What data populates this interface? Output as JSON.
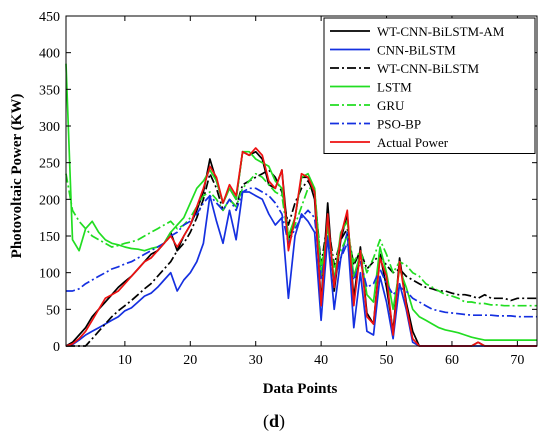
{
  "panel_label_open": "(",
  "panel_label_letter": "d",
  "panel_label_close": ")",
  "chart_data": {
    "type": "line",
    "title": "",
    "xlabel": "Data Points",
    "ylabel": "Photovoltaic Power (KW)",
    "xlim": [
      1,
      73
    ],
    "ylim": [
      0,
      450
    ],
    "xticks": [
      10,
      20,
      30,
      40,
      50,
      60,
      70
    ],
    "yticks": [
      0,
      50,
      100,
      150,
      200,
      250,
      300,
      350,
      400,
      450
    ],
    "grid": false,
    "legend_position": "top-right",
    "series": [
      {
        "name": "WT-CNN-BiLSTM-AM",
        "color": "#000000",
        "dash": "solid",
        "values": [
          0,
          5,
          15,
          25,
          40,
          50,
          60,
          70,
          80,
          88,
          95,
          105,
          115,
          125,
          130,
          140,
          155,
          130,
          150,
          165,
          185,
          210,
          255,
          225,
          195,
          215,
          200,
          265,
          260,
          265,
          255,
          220,
          215,
          240,
          145,
          175,
          230,
          230,
          200,
          60,
          195,
          75,
          145,
          180,
          65,
          135,
          45,
          30,
          125,
          80,
          20,
          120,
          60,
          20,
          0,
          0,
          0,
          0,
          0,
          0,
          0,
          0,
          0,
          5,
          0,
          0,
          0,
          0,
          0,
          0,
          0,
          0,
          0
        ]
      },
      {
        "name": "CNN-BiLSTM",
        "color": "#1530e0",
        "dash": "solid",
        "values": [
          0,
          2,
          8,
          15,
          20,
          25,
          30,
          35,
          40,
          48,
          52,
          60,
          68,
          72,
          80,
          90,
          100,
          75,
          90,
          100,
          115,
          140,
          205,
          170,
          140,
          185,
          145,
          210,
          210,
          205,
          200,
          180,
          165,
          175,
          65,
          150,
          180,
          170,
          155,
          35,
          150,
          50,
          120,
          155,
          25,
          100,
          20,
          15,
          95,
          60,
          10,
          85,
          50,
          5,
          0,
          0,
          0,
          0,
          0,
          0,
          0,
          0,
          0,
          0,
          0,
          0,
          0,
          0,
          0,
          0,
          0,
          0,
          0
        ]
      },
      {
        "name": "WT-CNN-BiLSTM",
        "color": "#000000",
        "dash": "dashdot",
        "values": [
          0,
          0,
          0,
          0,
          10,
          20,
          30,
          40,
          48,
          55,
          62,
          70,
          78,
          85,
          95,
          105,
          115,
          130,
          140,
          155,
          175,
          200,
          235,
          215,
          185,
          200,
          190,
          220,
          225,
          230,
          235,
          240,
          230,
          210,
          165,
          195,
          215,
          225,
          210,
          110,
          170,
          110,
          145,
          160,
          110,
          130,
          105,
          115,
          125,
          110,
          100,
          105,
          95,
          90,
          85,
          80,
          78,
          75,
          75,
          72,
          70,
          70,
          68,
          65,
          70,
          65,
          65,
          65,
          62,
          65,
          65,
          65,
          65
        ]
      },
      {
        "name": "LSTM",
        "color": "#22dd22",
        "dash": "solid",
        "values": [
          385,
          145,
          130,
          160,
          170,
          155,
          145,
          140,
          138,
          135,
          133,
          132,
          130,
          133,
          135,
          140,
          155,
          165,
          175,
          195,
          215,
          225,
          240,
          225,
          195,
          215,
          200,
          265,
          265,
          255,
          250,
          245,
          225,
          215,
          150,
          175,
          230,
          235,
          215,
          95,
          165,
          90,
          155,
          170,
          95,
          125,
          70,
          60,
          135,
          100,
          50,
          105,
          80,
          50,
          40,
          35,
          30,
          25,
          22,
          20,
          18,
          15,
          12,
          10,
          8,
          8,
          8,
          8,
          8,
          8,
          8,
          8,
          8
        ]
      },
      {
        "name": "GRU",
        "color": "#22dd22",
        "dash": "dashdot",
        "values": [
          235,
          185,
          170,
          160,
          150,
          145,
          140,
          135,
          137,
          140,
          142,
          145,
          150,
          155,
          160,
          165,
          170,
          160,
          165,
          175,
          190,
          205,
          210,
          200,
          185,
          200,
          190,
          215,
          225,
          235,
          230,
          220,
          210,
          205,
          145,
          165,
          190,
          215,
          215,
          105,
          160,
          105,
          130,
          150,
          115,
          130,
          100,
          120,
          145,
          125,
          100,
          115,
          110,
          100,
          95,
          85,
          80,
          75,
          70,
          68,
          65,
          60,
          60,
          58,
          58,
          56,
          56,
          55,
          55,
          55,
          55,
          55,
          55
        ]
      },
      {
        "name": "PSO-BP",
        "color": "#1530e0",
        "dash": "dashdot",
        "values": [
          75,
          75,
          78,
          85,
          90,
          95,
          100,
          105,
          108,
          112,
          115,
          120,
          125,
          130,
          135,
          140,
          150,
          155,
          165,
          170,
          180,
          195,
          205,
          195,
          185,
          200,
          185,
          210,
          215,
          215,
          210,
          205,
          195,
          180,
          140,
          160,
          175,
          185,
          175,
          90,
          145,
          90,
          120,
          140,
          90,
          115,
          80,
          85,
          105,
          85,
          70,
          80,
          75,
          65,
          60,
          55,
          50,
          48,
          46,
          45,
          44,
          43,
          42,
          42,
          42,
          42,
          41,
          41,
          41,
          40,
          40,
          40,
          40
        ]
      },
      {
        "name": "Actual Power",
        "color": "#ee1111",
        "dash": "solid",
        "values": [
          0,
          3,
          10,
          20,
          35,
          50,
          65,
          70,
          75,
          85,
          95,
          105,
          115,
          120,
          130,
          140,
          150,
          135,
          150,
          165,
          190,
          215,
          245,
          230,
          195,
          220,
          205,
          265,
          260,
          270,
          260,
          225,
          215,
          240,
          130,
          175,
          235,
          230,
          210,
          55,
          180,
          80,
          150,
          185,
          55,
          130,
          40,
          30,
          120,
          95,
          15,
          115,
          55,
          10,
          0,
          0,
          0,
          0,
          0,
          0,
          0,
          0,
          0,
          5,
          0,
          0,
          0,
          0,
          0,
          0,
          0,
          0,
          0
        ]
      }
    ]
  }
}
